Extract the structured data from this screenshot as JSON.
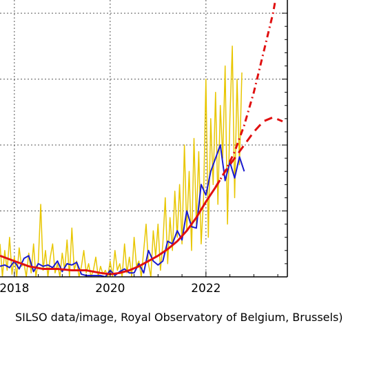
{
  "chart_data": {
    "type": "line",
    "title": "",
    "xlabel": "",
    "ylabel": "",
    "x_tick_labels": [
      "2018",
      "2020",
      "2022"
    ],
    "xlim": [
      2017.7,
      2023.7
    ],
    "ylim": [
      0,
      210
    ],
    "grid": true,
    "colors": {
      "daily": "#e8c600",
      "monthly": "#1a1ad0",
      "smoothed": "#e01010",
      "prediction": "#e01010",
      "grid": "#555555"
    },
    "series": [
      {
        "key": "monthly",
        "style": "solid",
        "x": [
          2017.7,
          2017.8,
          2017.9,
          2018.0,
          2018.1,
          2018.2,
          2018.3,
          2018.4,
          2018.5,
          2018.6,
          2018.7,
          2018.8,
          2018.9,
          2019.0,
          2019.1,
          2019.2,
          2019.3,
          2019.4,
          2019.5,
          2019.6,
          2019.7,
          2019.8,
          2019.9,
          2020.0,
          2020.1,
          2020.2,
          2020.3,
          2020.4,
          2020.5,
          2020.6,
          2020.7,
          2020.8,
          2020.9,
          2021.0,
          2021.1,
          2021.2,
          2021.3,
          2021.4,
          2021.5,
          2021.6,
          2021.7,
          2021.8,
          2021.9,
          2022.0,
          2022.1,
          2022.2,
          2022.3,
          2022.4,
          2022.5,
          2022.6,
          2022.7,
          2022.8
        ],
        "y": [
          8,
          9,
          7,
          12,
          6,
          14,
          16,
          4,
          10,
          8,
          9,
          7,
          12,
          4,
          10,
          9,
          11,
          2,
          1,
          1,
          1,
          1,
          0,
          5,
          1,
          4,
          6,
          3,
          3,
          10,
          3,
          20,
          12,
          9,
          12,
          27,
          25,
          35,
          28,
          50,
          38,
          37,
          70,
          62,
          80,
          90,
          100,
          73,
          87,
          75,
          91,
          80
        ]
      },
      {
        "key": "smoothed",
        "style": "solid",
        "x": [
          2017.7,
          2018.0,
          2018.3,
          2018.6,
          2018.9,
          2019.2,
          2019.5,
          2019.8,
          2020.0,
          2020.2,
          2020.4,
          2020.6,
          2020.8,
          2021.0,
          2021.2,
          2021.4,
          2021.6,
          2021.8,
          2022.0,
          2022.2
        ],
        "y": [
          16,
          12,
          8,
          6,
          6,
          5,
          5,
          3,
          2,
          3,
          5,
          8,
          12,
          16,
          21,
          27,
          35,
          45,
          57,
          68
        ]
      },
      {
        "key": "prediction-upper",
        "style": "dash-dot",
        "x": [
          2022.2,
          2022.4,
          2022.6,
          2022.8,
          2023.0,
          2023.2,
          2023.4,
          2023.6
        ],
        "y": [
          68,
          80,
          95,
          115,
          140,
          170,
          200,
          240
        ]
      },
      {
        "key": "prediction-lower",
        "style": "dashed",
        "x": [
          2022.2,
          2022.4,
          2022.6,
          2022.8,
          2023.0,
          2023.2,
          2023.4,
          2023.6
        ],
        "y": [
          68,
          80,
          90,
          100,
          110,
          118,
          121,
          118
        ]
      },
      {
        "key": "daily",
        "style": "solid",
        "x": [
          2017.7,
          2017.75,
          2017.8,
          2017.85,
          2017.9,
          2017.95,
          2018.0,
          2018.05,
          2018.1,
          2018.15,
          2018.2,
          2018.25,
          2018.3,
          2018.35,
          2018.4,
          2018.45,
          2018.5,
          2018.55,
          2018.6,
          2018.65,
          2018.7,
          2018.75,
          2018.8,
          2018.85,
          2018.9,
          2018.95,
          2019.0,
          2019.05,
          2019.1,
          2019.15,
          2019.2,
          2019.25,
          2019.3,
          2019.35,
          2019.4,
          2019.45,
          2019.5,
          2019.55,
          2019.6,
          2019.65,
          2019.7,
          2019.75,
          2019.8,
          2019.85,
          2019.9,
          2019.95,
          2020.0,
          2020.05,
          2020.1,
          2020.15,
          2020.2,
          2020.25,
          2020.3,
          2020.35,
          2020.4,
          2020.45,
          2020.5,
          2020.55,
          2020.6,
          2020.65,
          2020.7,
          2020.75,
          2020.8,
          2020.85,
          2020.9,
          2020.95,
          2021.0,
          2021.05,
          2021.1,
          2021.15,
          2021.2,
          2021.25,
          2021.3,
          2021.35,
          2021.4,
          2021.45,
          2021.5,
          2021.55,
          2021.6,
          2021.65,
          2021.7,
          2021.75,
          2021.8,
          2021.85,
          2021.9,
          2021.95,
          2022.0,
          2022.05,
          2022.1,
          2022.15,
          2022.2,
          2022.25,
          2022.3,
          2022.35,
          2022.4,
          2022.45,
          2022.5,
          2022.55,
          2022.6,
          2022.65,
          2022.7,
          2022.75
        ],
        "y": [
          25,
          0,
          20,
          5,
          30,
          2,
          15,
          0,
          22,
          8,
          10,
          0,
          18,
          3,
          25,
          0,
          12,
          55,
          5,
          20,
          0,
          15,
          25,
          3,
          10,
          0,
          18,
          5,
          28,
          0,
          37,
          5,
          12,
          0,
          8,
          20,
          3,
          10,
          0,
          5,
          15,
          0,
          8,
          2,
          5,
          0,
          12,
          0,
          20,
          5,
          10,
          0,
          25,
          3,
          15,
          0,
          30,
          8,
          12,
          0,
          20,
          40,
          10,
          0,
          35,
          15,
          40,
          5,
          25,
          60,
          10,
          45,
          20,
          65,
          30,
          70,
          25,
          100,
          35,
          80,
          20,
          105,
          40,
          95,
          25,
          60,
          150,
          30,
          120,
          70,
          140,
          55,
          130,
          90,
          160,
          40,
          120,
          175,
          60,
          150,
          85,
          155
        ]
      }
    ],
    "credit": "SILSO data/image, Royal Observatory of Belgium, Brussels)"
  }
}
